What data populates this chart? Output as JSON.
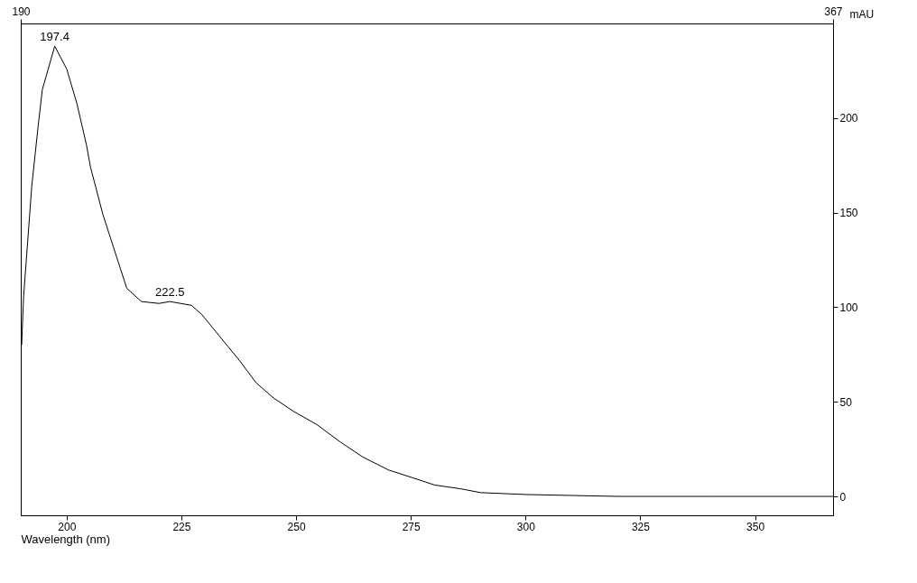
{
  "chart_data": {
    "type": "line",
    "xlabel": "Wavelength (nm)",
    "ylabel": "mAU",
    "series": [
      {
        "color": "#000000",
        "x": [
          190.2,
          190.6,
          192.4,
          193.8,
          194.7,
          197.4,
          200.0,
          202.2,
          204.3,
          205.2,
          207.9,
          213.1,
          216.3,
          220.1,
          222.5,
          227.2,
          229.5,
          233.2,
          237.6,
          241.3,
          245.1,
          249.4,
          254.5,
          259.5,
          264.4,
          270.1,
          275.2,
          280.2,
          285.9,
          290.2,
          300,
          320,
          340,
          367
        ],
        "values": [
          80,
          105,
          164,
          196,
          215,
          238,
          226,
          208,
          186,
          174,
          149,
          110,
          103,
          102,
          103,
          101,
          96,
          85,
          72,
          60,
          52,
          45,
          38,
          29,
          21,
          14,
          10,
          6,
          4,
          2,
          1,
          0,
          0,
          0
        ]
      }
    ],
    "xlim": [
      190,
      367
    ],
    "xticks": [
      200,
      225,
      250,
      275,
      300,
      325,
      350
    ],
    "x2lim": [
      190,
      367
    ],
    "x2ticks": [
      190,
      367
    ],
    "ylim": [
      -10,
      250
    ],
    "yticks": [
      0,
      50,
      100,
      150,
      200
    ],
    "annotations": [
      {
        "text": "197.4",
        "x": 197.4,
        "y": 238
      },
      {
        "text": "222.5",
        "x": 222.5,
        "y": 103
      }
    ],
    "line_style": "solid",
    "grid": false
  }
}
